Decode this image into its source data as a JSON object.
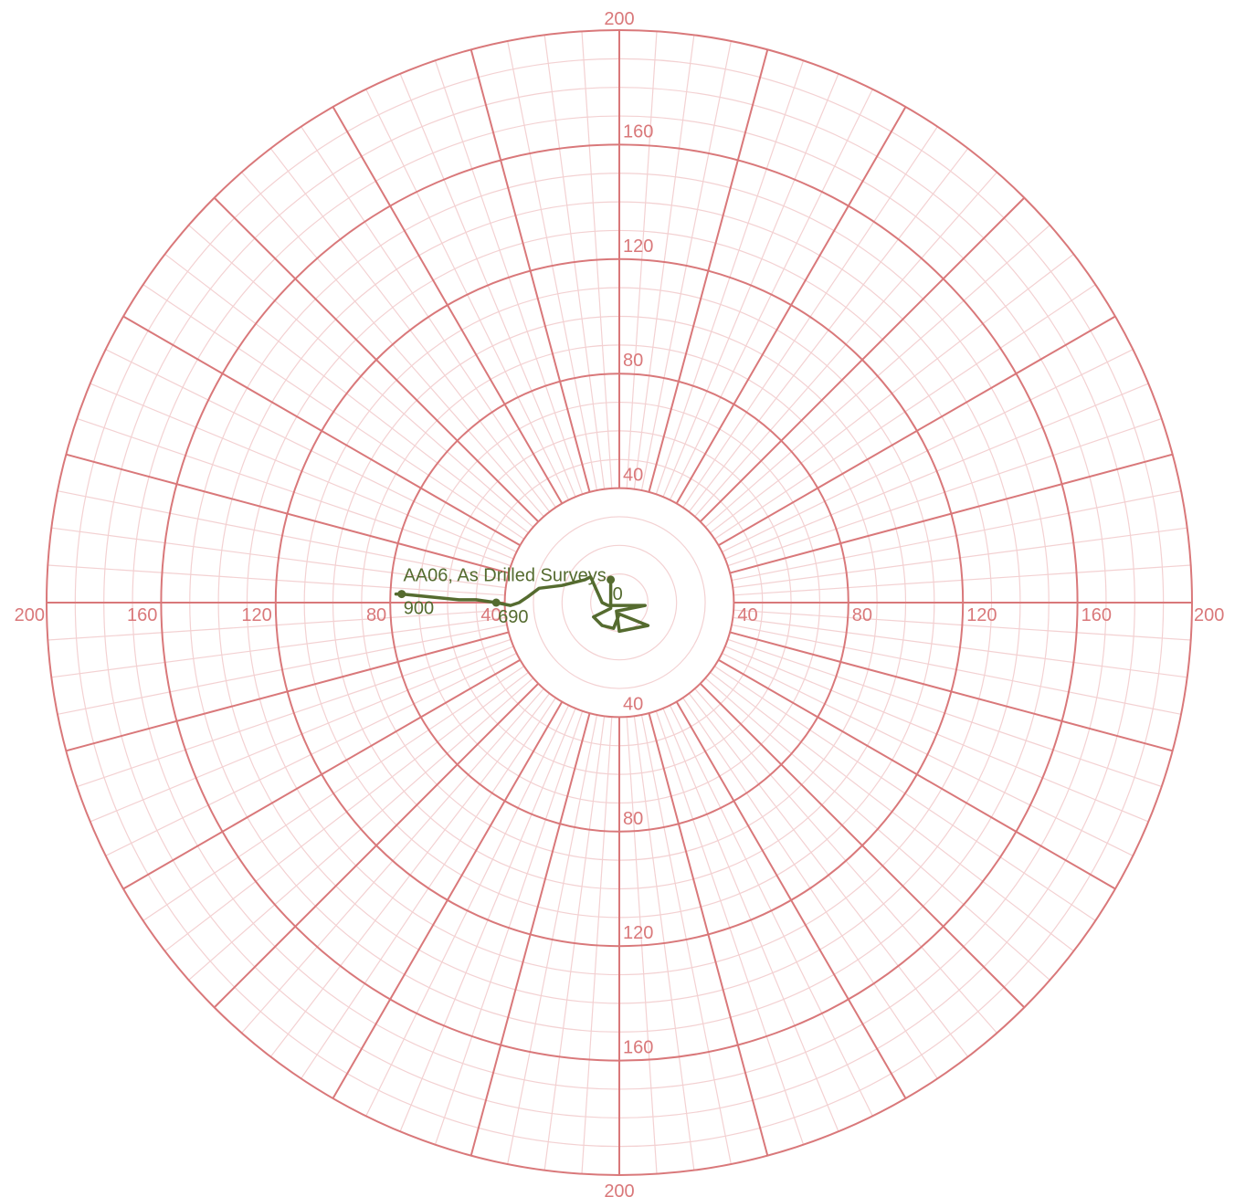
{
  "chart_data": {
    "type": "polar-line",
    "rmax": 200,
    "ring_step": 40,
    "minor_ring_step": 10,
    "major_spoke_deg": 15,
    "minor_spoke_deg": 3.75,
    "tick_values": [
      40,
      80,
      120,
      160,
      200
    ],
    "tick_labels": {
      "top": [
        "40",
        "80",
        "120",
        "160",
        "200"
      ],
      "bottom": [
        "40",
        "80",
        "120",
        "160",
        "200"
      ],
      "left": [
        "40",
        "80",
        "120",
        "160",
        "200"
      ],
      "right": [
        "40",
        "80",
        "120",
        "160",
        "200"
      ]
    },
    "grid_color": "#d9787a",
    "minor_grid_color": "#f3d1d2",
    "line_color": "#556b2f",
    "label_color": "#d9787a",
    "series": [
      {
        "name": "AA06, As Drilled Surveys",
        "points": [
          {
            "x": -3,
            "y": 8
          },
          {
            "x": -3,
            "y": -2
          },
          {
            "x": -9,
            "y": -5
          },
          {
            "x": -6,
            "y": -8
          },
          {
            "x": -2,
            "y": -9
          },
          {
            "x": 0,
            "y": -4
          },
          {
            "x": 10,
            "y": -8
          },
          {
            "x": 0,
            "y": -10
          },
          {
            "x": -1,
            "y": -3
          },
          {
            "x": 9,
            "y": -1
          },
          {
            "x": 3,
            "y": -1
          },
          {
            "x": -4,
            "y": -1
          },
          {
            "x": -6,
            "y": 0
          },
          {
            "x": -10,
            "y": 9
          },
          {
            "x": -12,
            "y": 8
          },
          {
            "x": -16,
            "y": 7
          },
          {
            "x": -20,
            "y": 6
          },
          {
            "x": -28,
            "y": 5
          },
          {
            "x": -32,
            "y": 2
          },
          {
            "x": -35,
            "y": 0
          },
          {
            "x": -38,
            "y": -1
          },
          {
            "x": -43,
            "y": 0
          },
          {
            "x": -50,
            "y": 1
          },
          {
            "x": -56,
            "y": 1
          },
          {
            "x": -66,
            "y": 2
          },
          {
            "x": -76,
            "y": 3
          },
          {
            "x": -78,
            "y": 3
          }
        ],
        "markers": [
          {
            "x": -3,
            "y": 8,
            "label": "0"
          },
          {
            "x": -43,
            "y": 0,
            "label": "690"
          },
          {
            "x": -76,
            "y": 3,
            "label": "900"
          }
        ]
      }
    ]
  }
}
